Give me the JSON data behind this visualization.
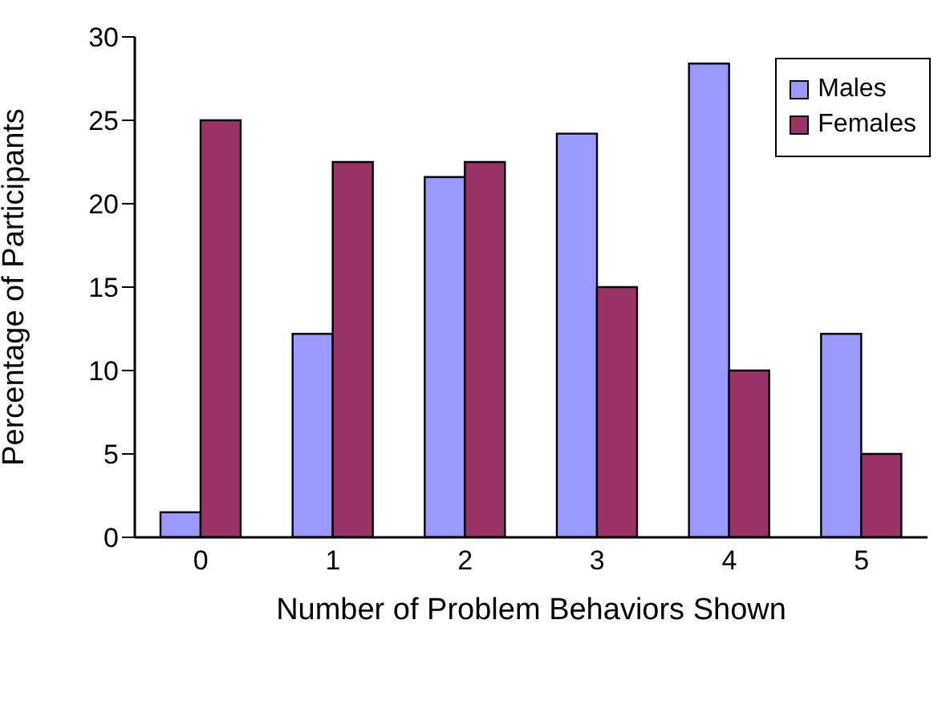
{
  "chart_data": {
    "type": "bar",
    "xlabel": "Number of Problem Behaviors Shown",
    "ylabel": "Percentage of Participants",
    "categories": [
      "0",
      "1",
      "2",
      "3",
      "4",
      "5"
    ],
    "series": [
      {
        "name": "Males",
        "color": "#9999ff",
        "values": [
          1.5,
          12.2,
          21.6,
          24.2,
          28.4,
          12.2
        ]
      },
      {
        "name": "Females",
        "color": "#993366",
        "values": [
          25,
          22.5,
          22.5,
          15,
          10,
          5
        ]
      }
    ],
    "ylim": [
      0,
      30
    ],
    "yticks": [
      0,
      5,
      10,
      15,
      20,
      25,
      30
    ],
    "grid": false,
    "legend": "top right"
  }
}
